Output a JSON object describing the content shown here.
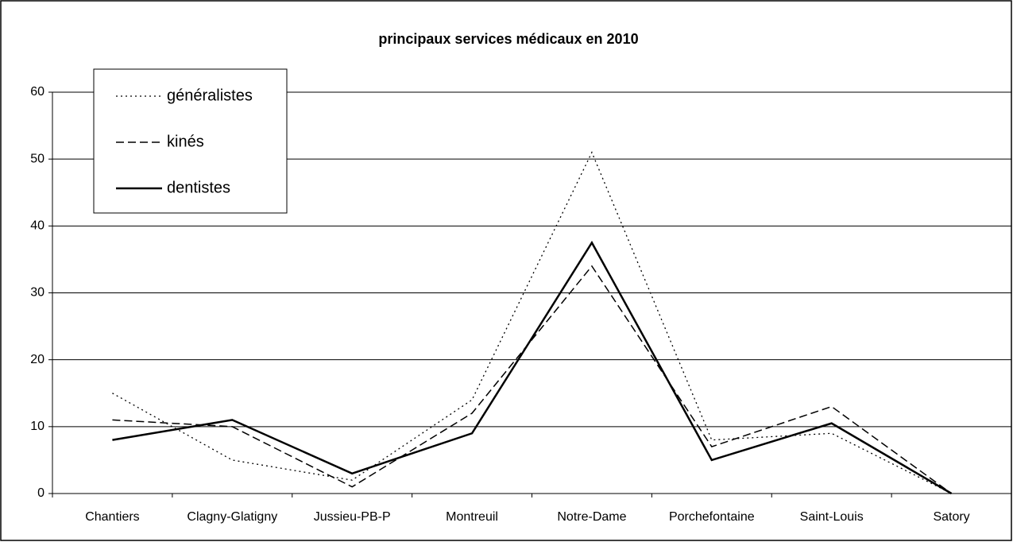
{
  "chart_data": {
    "type": "line",
    "title": "principaux services médicaux  en 2010",
    "categories": [
      "Chantiers",
      "Clagny-Glatigny",
      "Jussieu-PB-P",
      "Montreuil",
      "Notre-Dame",
      "Porchefontaine",
      "Saint-Louis",
      "Satory"
    ],
    "series": [
      {
        "name": "généralistes",
        "color": "#000000",
        "dash": "dotted",
        "values": [
          15,
          5,
          2,
          14,
          51,
          8,
          9,
          0
        ]
      },
      {
        "name": "kinés",
        "color": "#000000",
        "dash": "dashed",
        "values": [
          11,
          10,
          1,
          12,
          34,
          7,
          13,
          0
        ]
      },
      {
        "name": "dentistes",
        "color": "#000000",
        "dash": "solid",
        "values": [
          8,
          11,
          3,
          9,
          37.5,
          5,
          10.5,
          0
        ]
      }
    ],
    "ylim": [
      0,
      60
    ],
    "yticks": [
      0,
      10,
      20,
      30,
      40,
      50,
      60
    ],
    "grid": true,
    "legend": "top-left"
  }
}
